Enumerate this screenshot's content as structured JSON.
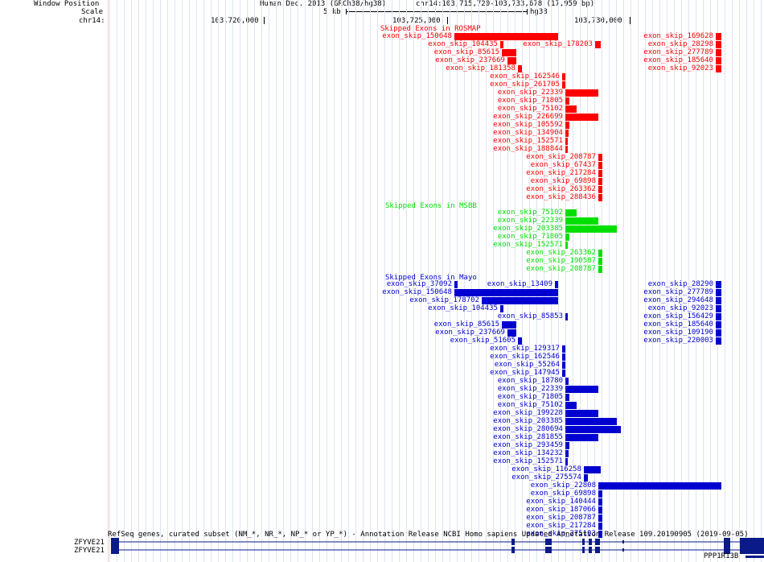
{
  "header": {
    "window_position_label": "Window Position",
    "scale_label": "Scale",
    "chrom_label": "chr14:",
    "assembly": "Human Dec. 2013 (GRCh38/hg38)",
    "position": "chr14:103,715,720-103,733,678 (17,959 bp)",
    "scale_value": "5 kb",
    "scale_db": "hg38",
    "ticks": [
      "103,720,000",
      "103,725,000",
      "103,730,000"
    ]
  },
  "colors": {
    "rosmap": "#ff0000",
    "msbb": "#00e000",
    "mayo": "#0000d0",
    "gene": "#0a1a88"
  },
  "tracks": {
    "rosmap": {
      "title": "Skipped Exons in ROSMAP",
      "items": [
        {
          "label": "exon_skip_150648",
          "start": 103725200,
          "end": 103728050
        },
        {
          "label": "exon_skip_104435",
          "start": 103726450,
          "end": 103726550
        },
        {
          "label": "exon_skip_178203",
          "start": 103729050,
          "end": 103729200
        },
        {
          "label": "exon_skip_169628",
          "start": 103732350,
          "end": 103732520
        },
        {
          "label": "exon_skip_85615",
          "start": 103726500,
          "end": 103726900
        },
        {
          "label": "exon_skip_28298",
          "start": 103732350,
          "end": 103732520
        },
        {
          "label": "exon_skip_237669",
          "start": 103726650,
          "end": 103726900
        },
        {
          "label": "exon_skip_277789",
          "start": 103732350,
          "end": 103732520
        },
        {
          "label": "exon_skip_181358",
          "start": 103726950,
          "end": 103727050
        },
        {
          "label": "exon_skip_185640",
          "start": 103732350,
          "end": 103732520
        },
        {
          "label": "exon_skip_92023",
          "start": 103732350,
          "end": 103732520
        },
        {
          "label": "exon_skip_162546",
          "start": 103728150,
          "end": 103728250
        },
        {
          "label": "exon_skip_261705",
          "start": 103728150,
          "end": 103728250
        },
        {
          "label": "exon_skip_22339",
          "start": 103728250,
          "end": 103729150
        },
        {
          "label": "exon_skip_71805",
          "start": 103728250,
          "end": 103728350
        },
        {
          "label": "exon_skip_75102",
          "start": 103728250,
          "end": 103728550
        },
        {
          "label": "exon_skip_226699",
          "start": 103728250,
          "end": 103729150
        },
        {
          "label": "exon_skip_105592",
          "start": 103728250,
          "end": 103728350
        },
        {
          "label": "exon_skip_134904",
          "start": 103728250,
          "end": 103728330
        },
        {
          "label": "exon_skip_152571",
          "start": 103728250,
          "end": 103728300
        },
        {
          "label": "exon_skip_188844",
          "start": 103728250,
          "end": 103728300
        },
        {
          "label": "exon_skip_208787",
          "start": 103729150,
          "end": 103729250
        },
        {
          "label": "exon_skip_67437",
          "start": 103729150,
          "end": 103729250
        },
        {
          "label": "exon_skip_217284",
          "start": 103729150,
          "end": 103729250
        },
        {
          "label": "exon_skip_69898",
          "start": 103729150,
          "end": 103729250
        },
        {
          "label": "exon_skip_263362",
          "start": 103729150,
          "end": 103729250
        },
        {
          "label": "exon_skip_288436",
          "start": 103729150,
          "end": 103729250
        }
      ]
    },
    "msbb": {
      "title": "Skipped Exons in MSBB",
      "items": [
        {
          "label": "exon_skip_75102",
          "start": 103728250,
          "end": 103728550
        },
        {
          "label": "exon_skip_22339",
          "start": 103728250,
          "end": 103729150
        },
        {
          "label": "exon_skip_203385",
          "start": 103728250,
          "end": 103729650
        },
        {
          "label": "exon_skip_71805",
          "start": 103728250,
          "end": 103728350
        },
        {
          "label": "exon_skip_152571",
          "start": 103728250,
          "end": 103728300
        },
        {
          "label": "exon_skip_263362",
          "start": 103729150,
          "end": 103729250
        },
        {
          "label": "exon_skip_190587",
          "start": 103729150,
          "end": 103729250
        },
        {
          "label": "exon_skip_208787",
          "start": 103729150,
          "end": 103729250
        }
      ]
    },
    "mayo": {
      "title": "Skipped Exons in Mayo",
      "items": [
        {
          "label": "exon_skip_37092",
          "start": 103725200,
          "end": 103725300
        },
        {
          "label": "exon_skip_13409",
          "start": 103727950,
          "end": 103728050
        },
        {
          "label": "exon_skip_28290",
          "start": 103732350,
          "end": 103732520
        },
        {
          "label": "exon_skip_150648",
          "start": 103725200,
          "end": 103728050
        },
        {
          "label": "exon_skip_277789",
          "start": 103732350,
          "end": 103732520
        },
        {
          "label": "exon_skip_178702",
          "start": 103725950,
          "end": 103728050
        },
        {
          "label": "exon_skip_294648",
          "start": 103732350,
          "end": 103732520
        },
        {
          "label": "exon_skip_104435",
          "start": 103726450,
          "end": 103726550
        },
        {
          "label": "exon_skip_85853",
          "start": 103728250,
          "end": 103728300
        },
        {
          "label": "exon_skip_92023",
          "start": 103732350,
          "end": 103732520
        },
        {
          "label": "exon_skip_85615",
          "start": 103726500,
          "end": 103726900
        },
        {
          "label": "exon_skip_156429",
          "start": 103732350,
          "end": 103732520
        },
        {
          "label": "exon_skip_237669",
          "start": 103726650,
          "end": 103726900
        },
        {
          "label": "exon_skip_185640",
          "start": 103732350,
          "end": 103732520
        },
        {
          "label": "exon_skip_51605",
          "start": 103726950,
          "end": 103727050
        },
        {
          "label": "exon_skip_109190",
          "start": 103732350,
          "end": 103732520
        },
        {
          "label": "exon_skip_129317",
          "start": 103728150,
          "end": 103728250
        },
        {
          "label": "exon_skip_220003",
          "start": 103732350,
          "end": 103732520
        },
        {
          "label": "exon_skip_162546",
          "start": 103728150,
          "end": 103728250
        },
        {
          "label": "exon_skip_55264",
          "start": 103728150,
          "end": 103728250
        },
        {
          "label": "exon_skip_147945",
          "start": 103728150,
          "end": 103728250
        },
        {
          "label": "exon_skip_18780",
          "start": 103728250,
          "end": 103728330
        },
        {
          "label": "exon_skip_22339",
          "start": 103728250,
          "end": 103729150
        },
        {
          "label": "exon_skip_71805",
          "start": 103728250,
          "end": 103728350
        },
        {
          "label": "exon_skip_75102",
          "start": 103728250,
          "end": 103728550
        },
        {
          "label": "exon_skip_199228",
          "start": 103728250,
          "end": 103729150
        },
        {
          "label": "exon_skip_203385",
          "start": 103728250,
          "end": 103729650
        },
        {
          "label": "exon_skip_280694",
          "start": 103728250,
          "end": 103729750
        },
        {
          "label": "exon_skip_281855",
          "start": 103728250,
          "end": 103729150
        },
        {
          "label": "exon_skip_293459",
          "start": 103728250,
          "end": 103728350
        },
        {
          "label": "exon_skip_134232",
          "start": 103728250,
          "end": 103728330
        },
        {
          "label": "exon_skip_152571",
          "start": 103728250,
          "end": 103728300
        },
        {
          "label": "exon_skip_116258",
          "start": 103728750,
          "end": 103729200
        },
        {
          "label": "exon_skip_275574",
          "start": 103728750,
          "end": 103728850
        },
        {
          "label": "exon_skip_22808",
          "start": 103729150,
          "end": 103732520
        },
        {
          "label": "exon_skip_69898",
          "start": 103729150,
          "end": 103729250
        },
        {
          "label": "exon_skip_140444",
          "start": 103729150,
          "end": 103729250
        },
        {
          "label": "exon_skip_187066",
          "start": 103729150,
          "end": 103729250
        },
        {
          "label": "exon_skip_208787",
          "start": 103729150,
          "end": 103729250
        },
        {
          "label": "exon_skip_217284",
          "start": 103729150,
          "end": 103729250
        },
        {
          "label": "exon_skip_275103",
          "start": 103729150,
          "end": 103729250
        }
      ]
    },
    "refseq": {
      "description": "RefSeq genes, curated subset (NM_*, NR_*, NP_* or YP_*) - Annotation Release NCBI Homo sapiens Updated Annotation Release 109.20190905 (2019-09-05)",
      "gene1": "ZFYVE21",
      "gene2": "ZFYVE21",
      "gene3": "PPP1R13B"
    }
  }
}
